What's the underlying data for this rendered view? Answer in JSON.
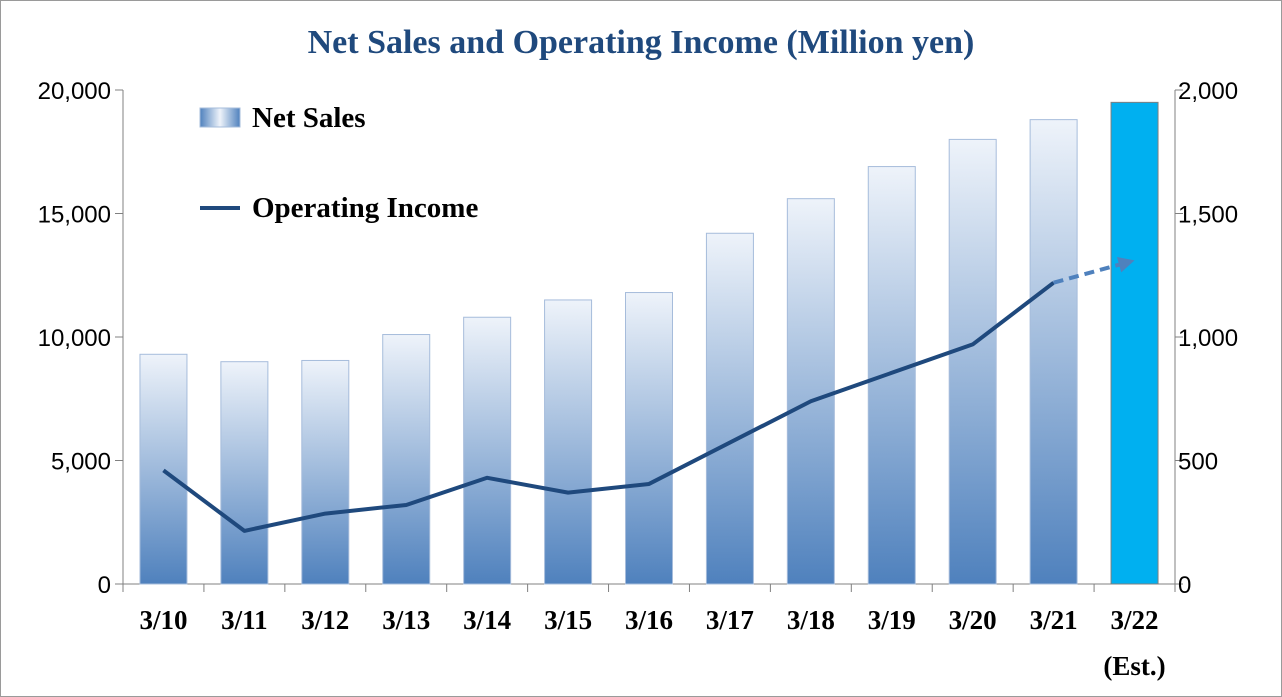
{
  "chart_data": {
    "type": "bar",
    "title": "Net Sales and Operating Income (Million yen)",
    "categories": [
      "3/10",
      "3/11",
      "3/12",
      "3/13",
      "3/14",
      "3/15",
      "3/16",
      "3/17",
      "3/18",
      "3/19",
      "3/20",
      "3/21",
      "3/22"
    ],
    "category_note": {
      "index": 12,
      "text": "(Est.)"
    },
    "series": [
      {
        "name": "Net Sales",
        "type": "bar",
        "axis": "left",
        "values": [
          9300,
          9000,
          9050,
          10100,
          10800,
          11500,
          11800,
          14200,
          15600,
          16900,
          18000,
          18800,
          19500
        ],
        "estimate_index": 12,
        "color": "#4f81bd",
        "estimate_color": "#00b0f0"
      },
      {
        "name": "Operating Income",
        "type": "line",
        "axis": "right",
        "values": [
          460,
          215,
          285,
          320,
          430,
          370,
          405,
          null,
          740,
          null,
          970,
          1220,
          1310
        ],
        "dashed_last_segment": true,
        "color": "#1f497d",
        "estimate_color": "#4f81bd"
      }
    ],
    "y_left": {
      "ylim": [
        0,
        20000
      ],
      "ticks": [
        "0",
        "5,000",
        "10,000",
        "15,000",
        "20,000"
      ],
      "tick_values": [
        0,
        5000,
        10000,
        15000,
        20000
      ]
    },
    "y_right": {
      "ylim": [
        0,
        2000
      ],
      "ticks": [
        "0",
        "500",
        "1,000",
        "1,500",
        "2,000"
      ],
      "tick_values": [
        0,
        500,
        1000,
        1500,
        2000
      ]
    },
    "legend_position": "top-left",
    "grid": false
  }
}
